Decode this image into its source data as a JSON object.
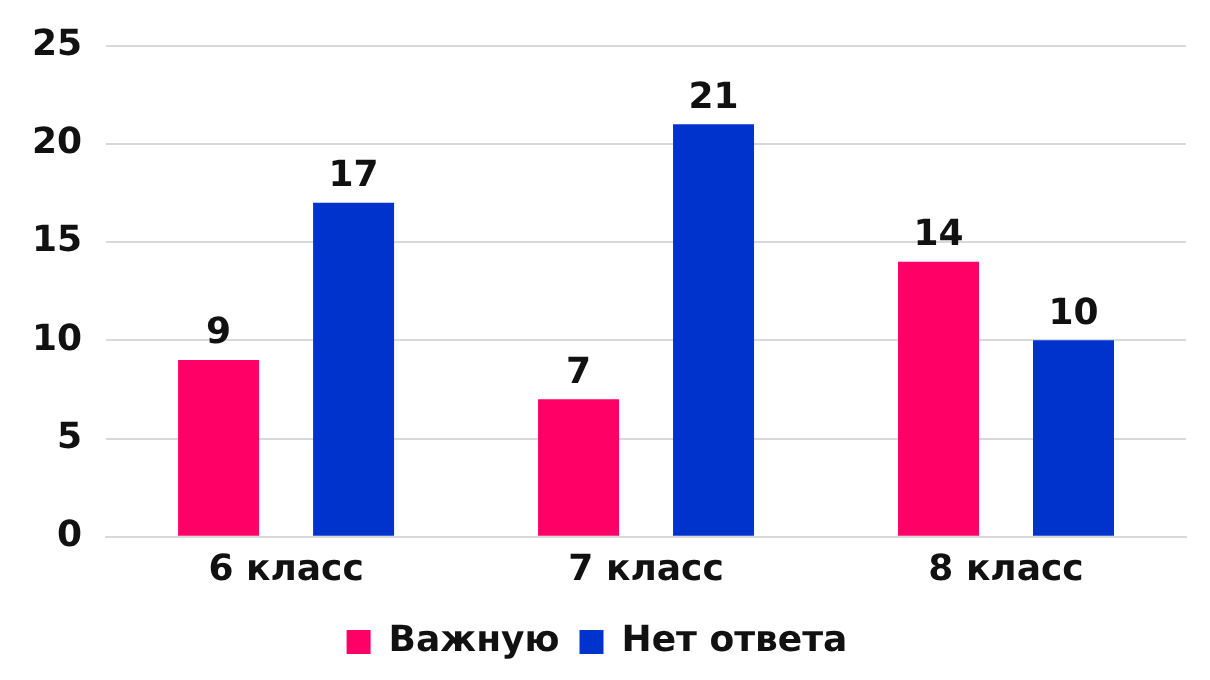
{
  "chart_data": {
    "type": "bar",
    "categories": [
      "6 класс",
      "7 класс",
      "8 класс"
    ],
    "series": [
      {
        "name": "Важную",
        "color": "#ff0066",
        "values": [
          9,
          7,
          14
        ]
      },
      {
        "name": "Нет ответа",
        "color": "#0033cc",
        "values": [
          17,
          21,
          10
        ]
      }
    ],
    "ylim": [
      0,
      25
    ],
    "yticks": [
      0,
      5,
      10,
      15,
      20,
      25
    ],
    "grid": "y",
    "legend": "bottom",
    "data_labels": true
  }
}
